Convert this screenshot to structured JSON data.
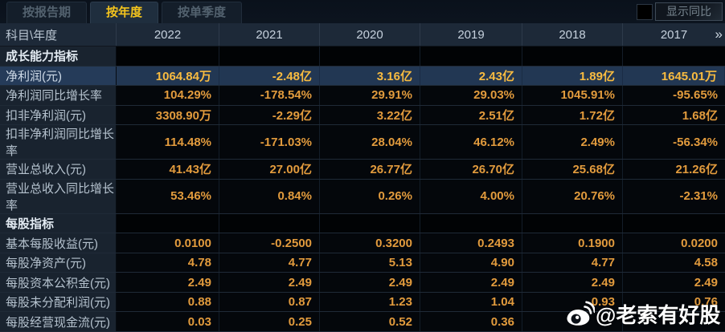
{
  "tabs": [
    {
      "label": "按报告期",
      "selected": false
    },
    {
      "label": "按年度",
      "selected": true
    },
    {
      "label": "按单季度",
      "selected": false
    }
  ],
  "show_yoy": {
    "label": "显示同比",
    "checked": false
  },
  "table": {
    "corner_label": "科目\\年度",
    "years": [
      "2022",
      "2021",
      "2020",
      "2019",
      "2018",
      "2017"
    ],
    "more_label": "»",
    "rows": [
      {
        "type": "section",
        "label": "成长能力指标"
      },
      {
        "type": "data",
        "highlight": true,
        "label": "净利润(元)",
        "values": [
          "1064.84万",
          "-2.48亿",
          "3.16亿",
          "2.43亿",
          "1.89亿",
          "1645.01万"
        ]
      },
      {
        "type": "data",
        "highlight": false,
        "label": "净利润同比增长率",
        "values": [
          "104.29%",
          "-178.54%",
          "29.91%",
          "29.03%",
          "1045.91%",
          "-95.65%"
        ]
      },
      {
        "type": "data",
        "highlight": false,
        "label": "扣非净利润(元)",
        "values": [
          "3308.90万",
          "-2.29亿",
          "3.22亿",
          "2.51亿",
          "1.72亿",
          "1.68亿"
        ]
      },
      {
        "type": "data",
        "highlight": false,
        "label": "扣非净利润同比增长率",
        "values": [
          "114.48%",
          "-171.03%",
          "28.04%",
          "46.12%",
          "2.49%",
          "-56.34%"
        ]
      },
      {
        "type": "data",
        "highlight": false,
        "label": "营业总收入(元)",
        "values": [
          "41.43亿",
          "27.00亿",
          "26.77亿",
          "26.70亿",
          "25.68亿",
          "21.26亿"
        ]
      },
      {
        "type": "data",
        "highlight": false,
        "label": "营业总收入同比增长率",
        "values": [
          "53.46%",
          "0.84%",
          "0.26%",
          "4.00%",
          "20.76%",
          "-2.31%"
        ]
      },
      {
        "type": "section",
        "label": "每股指标"
      },
      {
        "type": "data",
        "highlight": false,
        "label": "基本每股收益(元)",
        "values": [
          "0.0100",
          "-0.2500",
          "0.3200",
          "0.2493",
          "0.1900",
          "0.0200"
        ]
      },
      {
        "type": "data",
        "highlight": false,
        "label": "每股净资产(元)",
        "values": [
          "4.78",
          "4.77",
          "5.13",
          "4.90",
          "4.77",
          "4.58"
        ]
      },
      {
        "type": "data",
        "highlight": false,
        "label": "每股资本公积金(元)",
        "values": [
          "2.49",
          "2.49",
          "2.49",
          "2.49",
          "2.49",
          "2.49"
        ]
      },
      {
        "type": "data",
        "highlight": false,
        "label": "每股未分配利润(元)",
        "values": [
          "0.88",
          "0.87",
          "1.23",
          "1.04",
          "0.93",
          "0.76"
        ]
      },
      {
        "type": "data",
        "highlight": false,
        "label": "每股经营现金流(元)",
        "values": [
          "0.03",
          "0.25",
          "0.52",
          "0.36",
          "",
          ""
        ]
      }
    ]
  },
  "watermark": {
    "text": "@老索有好股"
  },
  "colors": {
    "accent_gold": "#f4c41d",
    "value_orange": "#e29b3d",
    "highlight_value": "#f8bb40",
    "highlight_row_bg": "#223753",
    "header_bg": "#1d2938",
    "label_col_bg": "#19232f",
    "data_cell_bg": "#04070b"
  }
}
